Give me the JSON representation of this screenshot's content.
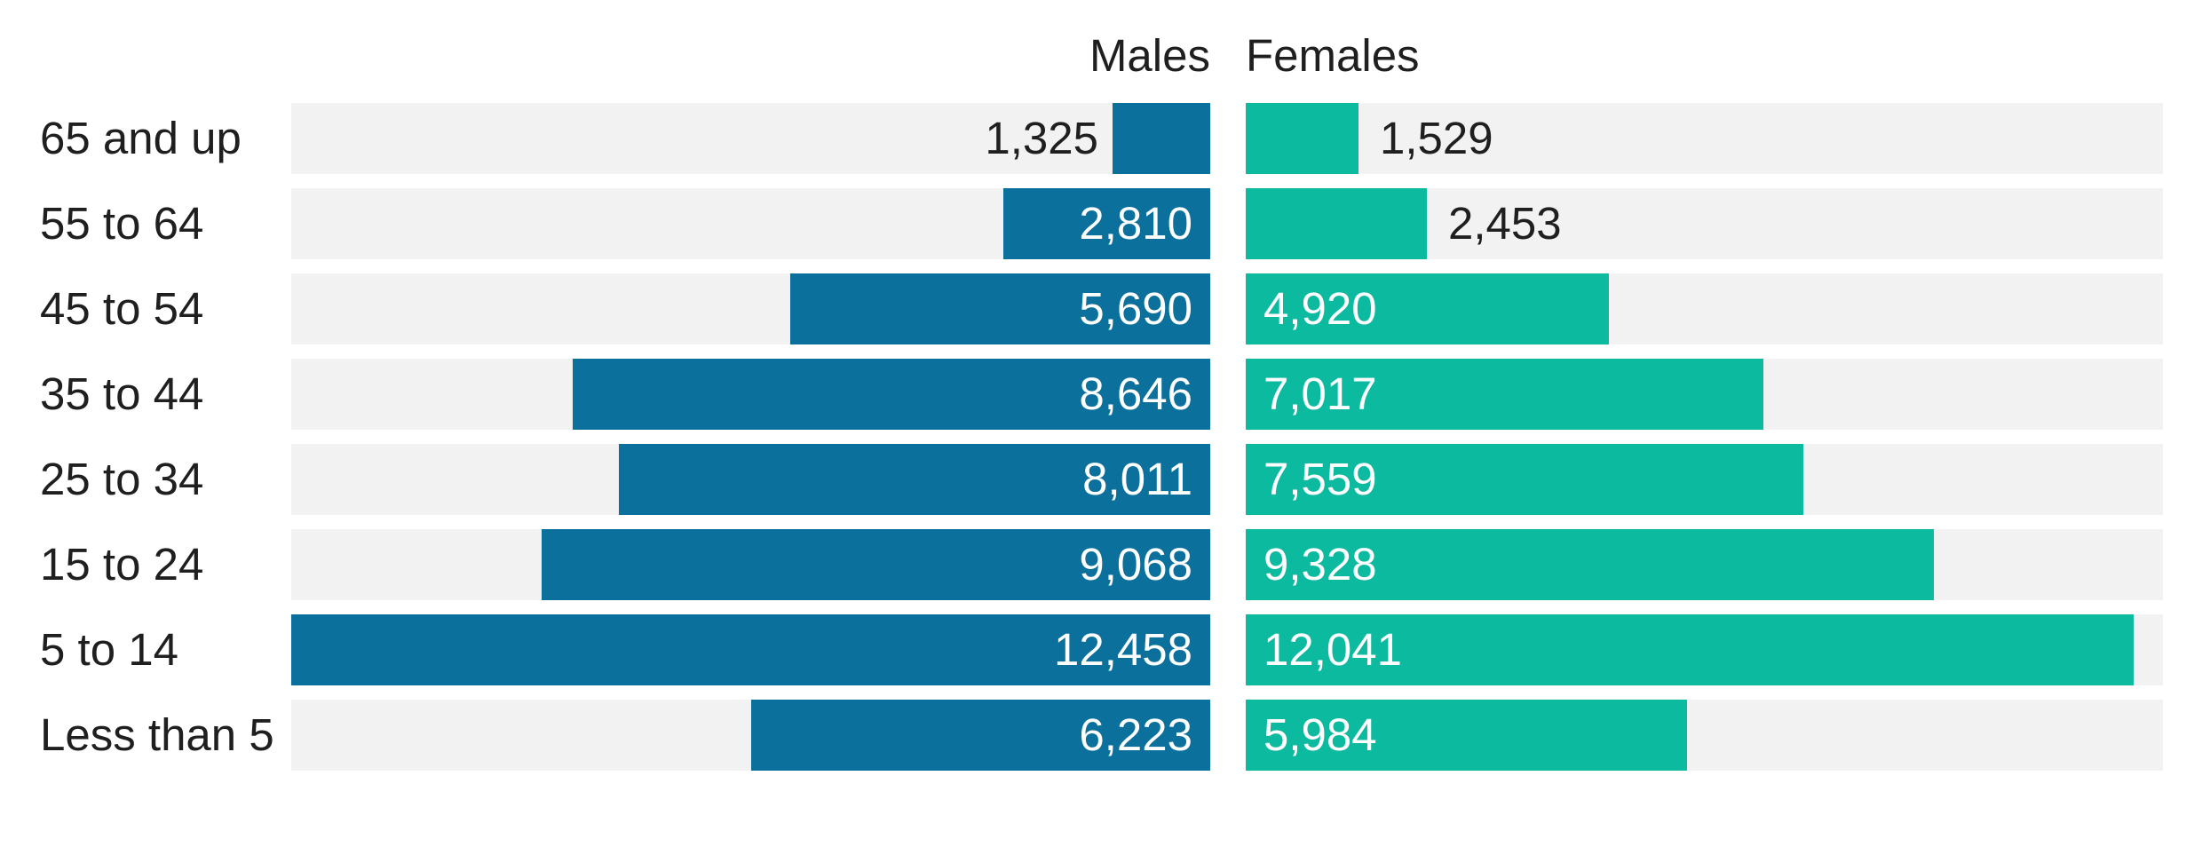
{
  "chart_data": {
    "type": "bar",
    "orientation": "horizontal",
    "layout": "population-pyramid",
    "title": "",
    "categories": [
      "65 and up",
      "55 to 64",
      "45 to 54",
      "35 to 44",
      "25 to 34",
      "15 to 24",
      "5 to 14",
      "Less than 5"
    ],
    "series": [
      {
        "name": "Males",
        "values": [
          1325,
          2810,
          5690,
          8646,
          8011,
          9068,
          12458,
          6223
        ],
        "value_labels": [
          "1,325",
          "2,810",
          "5,690",
          "8,646",
          "8,011",
          "9,068",
          "12,458",
          "6,223"
        ]
      },
      {
        "name": "Females",
        "values": [
          1529,
          2453,
          4920,
          7017,
          7559,
          9328,
          12041,
          5984
        ],
        "value_labels": [
          "1,529",
          "2,453",
          "4,920",
          "7,017",
          "7,559",
          "9,328",
          "12,041",
          "5,984"
        ]
      }
    ],
    "xlim": [
      0,
      12458
    ],
    "grid": false,
    "legend_position": "column-headers",
    "colors": {
      "males_bar": "#0b709c",
      "females_bar": "#0cbaa0",
      "row_track": "#f2f2f2",
      "text_dark": "#1f1f1f",
      "text_on_bar": "#ffffff"
    }
  }
}
